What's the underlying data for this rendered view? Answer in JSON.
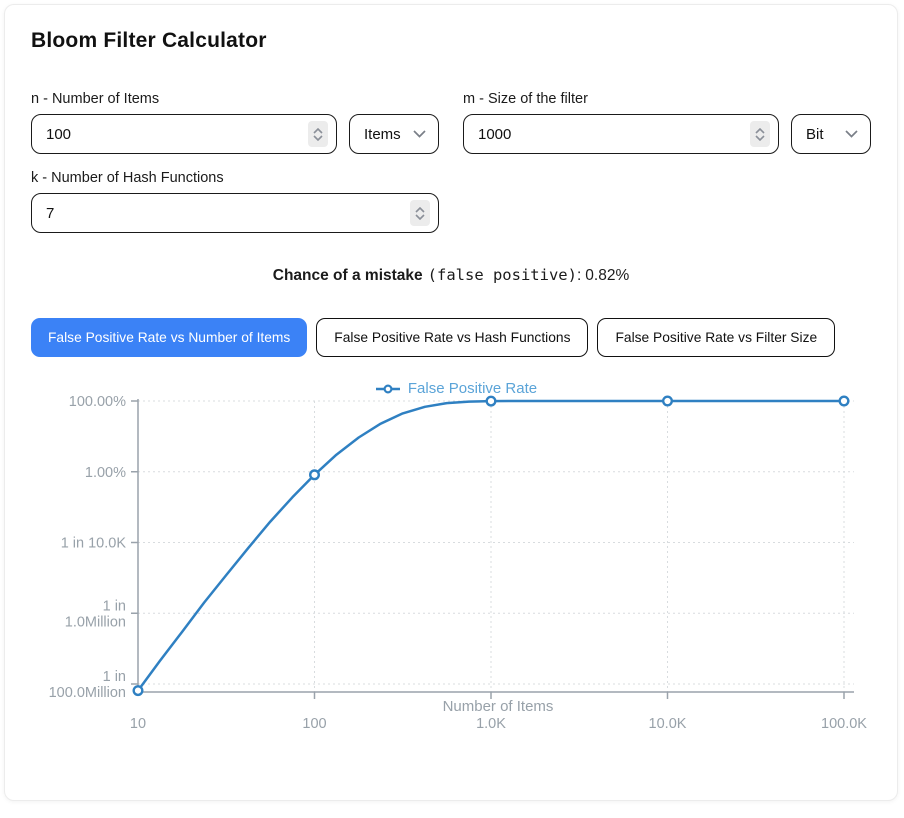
{
  "title": "Bloom Filter Calculator",
  "theme": {
    "accent_blue": "#3b82f6",
    "input_border": "#1a1a1a"
  },
  "form": {
    "n": {
      "label": "n - Number of Items",
      "value": "100",
      "unit": "Items"
    },
    "m": {
      "label": "m - Size of the filter",
      "value": "1000",
      "ununit": "",
      "unit": "Bit"
    },
    "k": {
      "label": "k - Number of Hash Functions",
      "value": "7"
    }
  },
  "result": {
    "bold": "Chance of a mistake",
    "mono": "(false positive)",
    "separator": ":",
    "value": "0.82%"
  },
  "tabs": [
    {
      "label": "False Positive Rate vs Number of Items",
      "active": true
    },
    {
      "label": "False Positive Rate vs Hash Functions",
      "active": false
    },
    {
      "label": "False Positive Rate vs Filter Size",
      "active": false
    }
  ],
  "chart_data": {
    "type": "line",
    "legend": "False Positive Rate",
    "xlabel": "Number of Items",
    "x_scale": "log",
    "y_scale": "log",
    "x_range": [
      10,
      100000
    ],
    "y_range": [
      1e-08,
      1
    ],
    "colors": {
      "line": "#2f80c2",
      "legend_text": "#5ba4d8",
      "marker_fill": "#ffffff"
    },
    "x_ticks": [
      {
        "n": 10,
        "label": "10"
      },
      {
        "n": 100,
        "label": "100"
      },
      {
        "n": 1000,
        "label": "1.0K"
      },
      {
        "n": 10000,
        "label": "10.0K"
      },
      {
        "n": 100000,
        "label": "100.0K"
      }
    ],
    "y_ticks": [
      {
        "p": 1,
        "lines": [
          "100.00%"
        ]
      },
      {
        "p": 0.01,
        "lines": [
          "1.00%"
        ]
      },
      {
        "p": 0.0001,
        "lines": [
          "1 in 10.0K"
        ]
      },
      {
        "p": 1e-06,
        "lines": [
          "1 in",
          "1.0Million"
        ]
      },
      {
        "p": 1e-08,
        "lines": [
          "1 in",
          "100.0Million"
        ]
      }
    ],
    "points": [
      [
        10,
        6.5e-09
      ],
      [
        100,
        0.0082
      ],
      [
        1000,
        0.9936
      ],
      [
        10000,
        1
      ],
      [
        100000,
        1
      ]
    ],
    "curve": [
      [
        10,
        6.5e-09
      ],
      [
        13.3,
        4.5e-08
      ],
      [
        17.8,
        3e-07
      ],
      [
        23.7,
        2e-06
      ],
      [
        31.6,
        1.2e-05
      ],
      [
        42.2,
        7.1e-05
      ],
      [
        56.2,
        0.00039
      ],
      [
        75,
        0.0019
      ],
      [
        100,
        0.0082
      ],
      [
        133,
        0.0303
      ],
      [
        178,
        0.0927
      ],
      [
        237,
        0.228
      ],
      [
        316,
        0.445
      ],
      [
        422,
        0.687
      ],
      [
        562,
        0.871
      ],
      [
        750,
        0.964
      ],
      [
        1000,
        0.9936
      ],
      [
        1780,
        0.99997
      ],
      [
        3162,
        0.999999
      ],
      [
        10000,
        1
      ],
      [
        100000,
        1
      ]
    ]
  }
}
